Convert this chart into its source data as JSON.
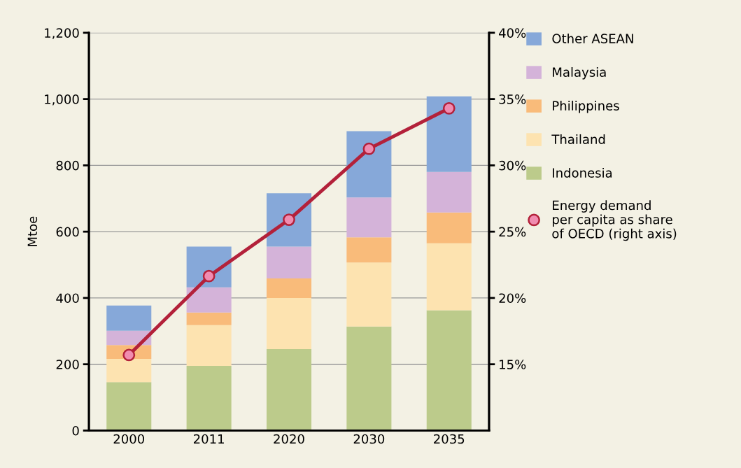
{
  "chart_data": {
    "type": "bar",
    "stacked": true,
    "ylabel": "Mtoe",
    "categories": [
      "2000",
      "2011",
      "2020",
      "2030",
      "2035"
    ],
    "series": [
      {
        "name": "Indonesia",
        "color": "#bccb8b",
        "values": [
          146,
          195,
          246,
          314,
          363
        ]
      },
      {
        "name": "Thailand",
        "color": "#fde3b0",
        "values": [
          70,
          123,
          154,
          193,
          202
        ]
      },
      {
        "name": "Philippines",
        "color": "#f9bb7a",
        "values": [
          42,
          38,
          59,
          76,
          93
        ]
      },
      {
        "name": "Malaysia",
        "color": "#d4b3d9",
        "values": [
          43,
          76,
          96,
          120,
          122
        ]
      },
      {
        "name": "Other ASEAN",
        "color": "#86a8d9",
        "values": [
          76,
          123,
          161,
          200,
          228
        ]
      },
      {
        "name": "Energy demand\nper capita as share\nof OECD (right axis)",
        "type": "line",
        "axis": "y2",
        "color": "#b3213a",
        "marker": "circle",
        "values": [
          15.7,
          21.65,
          25.9,
          31.25,
          34.3
        ]
      }
    ],
    "ylim": [
      0,
      1200
    ],
    "yticks": [
      0,
      200,
      400,
      600,
      800,
      {
        "value": 1000,
        "label": "1,000"
      },
      {
        "value": 1200,
        "label": "1,200"
      }
    ],
    "y2lim": [
      10,
      40
    ],
    "y2ticks": [
      {
        "value": 15,
        "label": "15%"
      },
      {
        "value": 20,
        "label": "20%"
      },
      {
        "value": 25,
        "label": "25%"
      },
      {
        "value": 30,
        "label": "30%"
      },
      {
        "value": 35,
        "label": "35%"
      },
      {
        "value": 40,
        "label": "40%"
      }
    ],
    "grid": "y",
    "legend": "right"
  }
}
